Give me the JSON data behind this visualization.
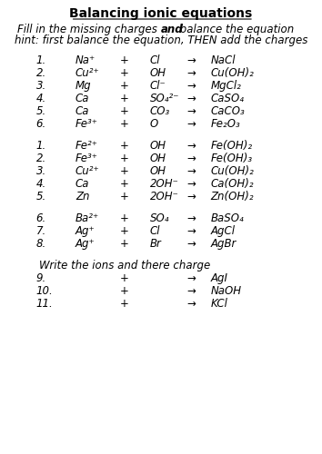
{
  "title": "Balancing ionic equations",
  "instruction1": "Fill in the missing charges ",
  "instruction1b": "and",
  "instruction1c": " balance the equation",
  "instruction2": "hint: first balance the equation, THEN add the charges",
  "bg_color": "#ffffff",
  "font_color": "#000000",
  "section1": [
    {
      "num": "1.",
      "col1": "Na⁺",
      "col2": "+",
      "col3": "Cl",
      "col4": "→",
      "col5": "NaCl"
    },
    {
      "num": "2.",
      "col1": "Cu²⁺",
      "col2": "+",
      "col3": "OH",
      "col4": "→",
      "col5": "Cu(OH)₂"
    },
    {
      "num": "3.",
      "col1": "Mg",
      "col2": "+",
      "col3": "Cl⁻",
      "col4": "→",
      "col5": "MgCl₂"
    },
    {
      "num": "4.",
      "col1": "Ca",
      "col2": "+",
      "col3": "SO₄²⁻",
      "col4": "→",
      "col5": "CaSO₄"
    },
    {
      "num": "5.",
      "col1": "Ca",
      "col2": "+",
      "col3": "CO₃",
      "col4": "→",
      "col5": "CaCO₃"
    },
    {
      "num": "6.",
      "col1": "Fe³⁺",
      "col2": "+",
      "col3": "O",
      "col4": "→",
      "col5": "Fe₂O₃"
    }
  ],
  "section2": [
    {
      "num": "1.",
      "col1": "Fe²⁺",
      "col2": "+",
      "col3": "OH",
      "col4": "→",
      "col5": "Fe(OH)₂"
    },
    {
      "num": "2.",
      "col1": "Fe³⁺",
      "col2": "+",
      "col3": "OH",
      "col4": "→",
      "col5": "Fe(OH)₃"
    },
    {
      "num": "3.",
      "col1": "Cu²⁺",
      "col2": "+",
      "col3": "OH",
      "col4": "→",
      "col5": "Cu(OH)₂"
    },
    {
      "num": "4.",
      "col1": "Ca",
      "col2": "+",
      "col3": "2OH⁻",
      "col4": "→",
      "col5": "Ca(OH)₂"
    },
    {
      "num": "5.",
      "col1": "Zn",
      "col2": "+",
      "col3": "2OH⁻",
      "col4": "→",
      "col5": "Zn(OH)₂"
    }
  ],
  "section3": [
    {
      "num": "6.",
      "col1": "Ba²⁺",
      "col2": "+",
      "col3": "SO₄",
      "col4": "→",
      "col5": "BaSO₄"
    },
    {
      "num": "7.",
      "col1": "Ag⁺",
      "col2": "+",
      "col3": "Cl",
      "col4": "→",
      "col5": "AgCl"
    },
    {
      "num": "8.",
      "col1": "Ag⁺",
      "col2": "+",
      "col3": "Br",
      "col4": "→",
      "col5": "AgBr"
    }
  ],
  "write_label": "Write the ions and there charge",
  "section4": [
    {
      "num": "9.",
      "col1": "",
      "col2": "+",
      "col3": "",
      "col4": "→",
      "col5": "AgI"
    },
    {
      "num": "10.",
      "col1": "",
      "col2": "+",
      "col3": "",
      "col4": "→",
      "col5": "NaOH"
    },
    {
      "num": "11.",
      "col1": "",
      "col2": "+",
      "col3": "",
      "col4": "→",
      "col5": "KCl"
    }
  ]
}
